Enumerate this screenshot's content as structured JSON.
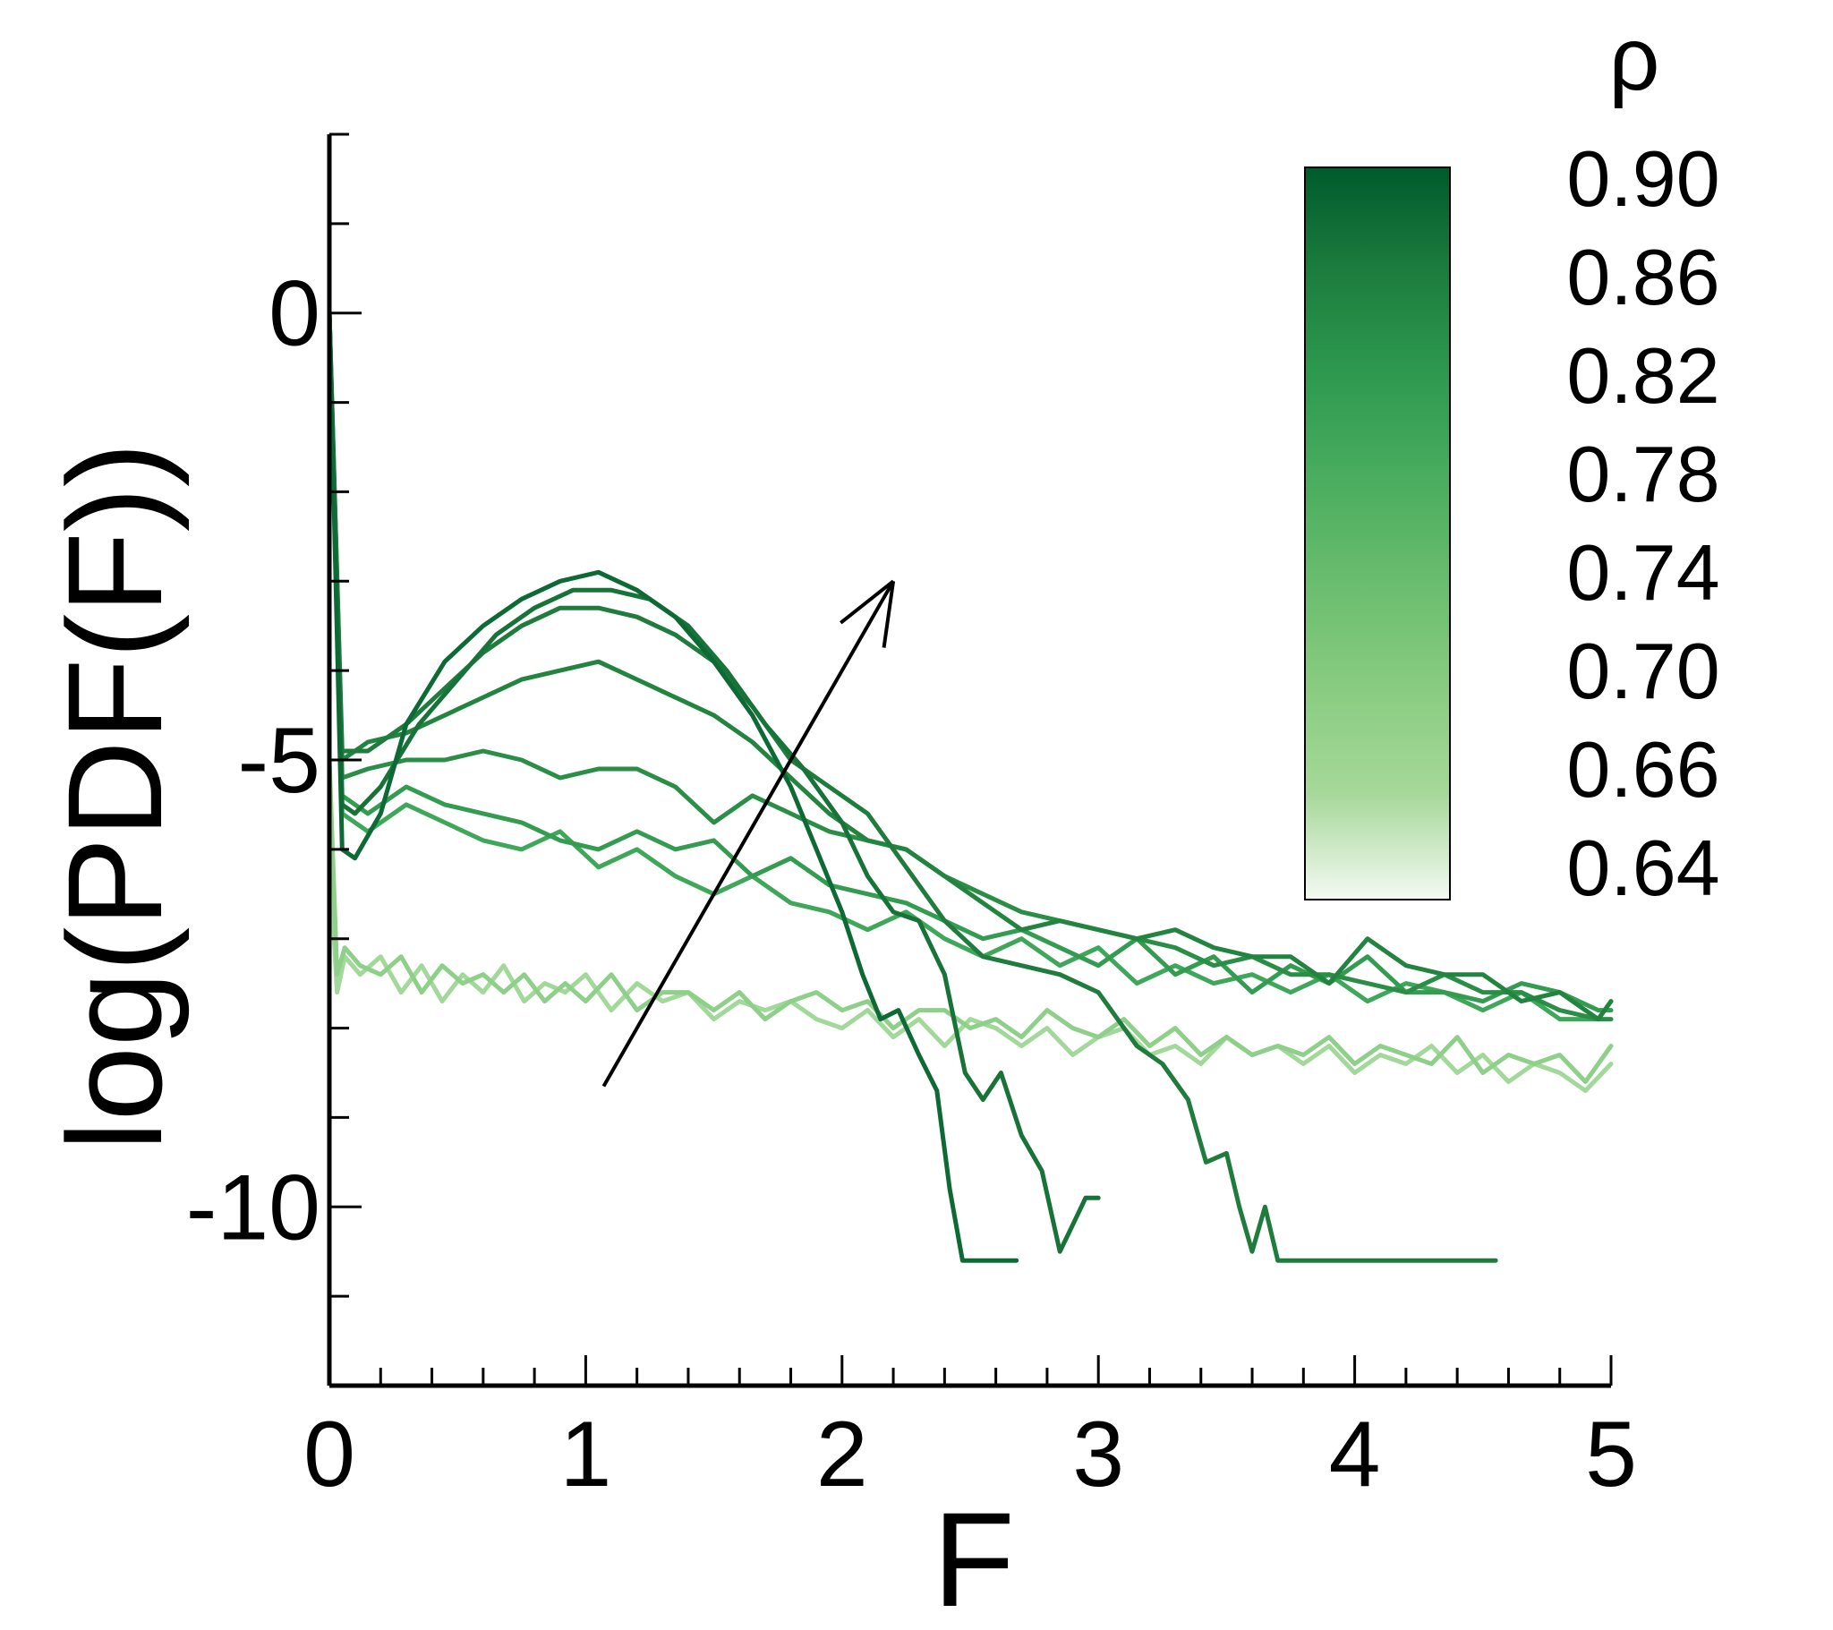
{
  "chart_data": {
    "type": "line",
    "title": "",
    "xlabel": "F",
    "ylabel": "log(PDF(F))",
    "xlim": [
      0,
      5
    ],
    "ylim": [
      -12,
      2
    ],
    "xticks": [
      0,
      1,
      2,
      3,
      4,
      5
    ],
    "xtick_labels": [
      "0",
      "1",
      "2",
      "3",
      "4",
      "5"
    ],
    "yticks": [
      0,
      -5,
      -10
    ],
    "ytick_labels": [
      "0",
      "-5",
      "-10"
    ],
    "grid": false,
    "colorbar": {
      "title": "ρ",
      "labels": [
        "0.90",
        "0.86",
        "0.82",
        "0.78",
        "0.74",
        "0.70",
        "0.66",
        "0.64"
      ],
      "colors": [
        "#005a2c",
        "#1d7d3e",
        "#2e9a50",
        "#4bad5f",
        "#6bbd6f",
        "#89cc81",
        "#a7d89a",
        "#f4faf2"
      ]
    },
    "annotation": "arrow indicating increasing ρ",
    "series": [
      {
        "color": "#0d6a35",
        "x": [
          0.0,
          0.05,
          0.1,
          0.2,
          0.3,
          0.45,
          0.6,
          0.75,
          0.9,
          1.05,
          1.2,
          1.35,
          1.5,
          1.65,
          1.8,
          1.9,
          2.0,
          2.08,
          2.15,
          2.22,
          2.3,
          2.37,
          2.42,
          2.47,
          2.55,
          2.62,
          2.68
        ],
        "y": [
          0.0,
          -6.0,
          -6.1,
          -5.6,
          -4.6,
          -3.9,
          -3.5,
          -3.2,
          -3.0,
          -2.9,
          -3.1,
          -3.4,
          -3.9,
          -4.5,
          -5.3,
          -6.0,
          -6.7,
          -7.4,
          -7.9,
          -7.8,
          -8.3,
          -8.7,
          -9.8,
          -10.6,
          -10.6,
          -10.6,
          -10.6
        ]
      },
      {
        "color": "#187338",
        "x": [
          0.0,
          0.05,
          0.1,
          0.2,
          0.35,
          0.5,
          0.65,
          0.8,
          0.95,
          1.1,
          1.25,
          1.4,
          1.55,
          1.7,
          1.85,
          2.0,
          2.1,
          2.2,
          2.3,
          2.4,
          2.48,
          2.55,
          2.62,
          2.7,
          2.78,
          2.85,
          2.9,
          2.95,
          3.0
        ],
        "y": [
          0.0,
          -5.5,
          -5.6,
          -5.3,
          -4.6,
          -4.1,
          -3.6,
          -3.3,
          -3.1,
          -3.1,
          -3.2,
          -3.5,
          -4.0,
          -4.6,
          -5.1,
          -5.7,
          -6.3,
          -6.7,
          -6.8,
          -7.4,
          -8.5,
          -8.8,
          -8.5,
          -9.2,
          -9.6,
          -10.5,
          -10.2,
          -9.9,
          -9.9
        ]
      },
      {
        "color": "#1f7c3d",
        "x": [
          0.0,
          0.05,
          0.15,
          0.3,
          0.45,
          0.6,
          0.75,
          0.9,
          1.05,
          1.2,
          1.35,
          1.5,
          1.65,
          1.8,
          1.95,
          2.1,
          2.25,
          2.4,
          2.55,
          2.7,
          2.85,
          3.0,
          3.15,
          3.25,
          3.35,
          3.42,
          3.5,
          3.55,
          3.6,
          3.65,
          3.7,
          3.8,
          4.0,
          4.2,
          4.4,
          4.55
        ],
        "y": [
          0.0,
          -4.9,
          -4.9,
          -4.6,
          -4.2,
          -3.8,
          -3.5,
          -3.3,
          -3.3,
          -3.4,
          -3.6,
          -3.9,
          -4.4,
          -5.0,
          -5.3,
          -5.6,
          -6.2,
          -6.8,
          -7.2,
          -7.3,
          -7.4,
          -7.6,
          -8.2,
          -8.4,
          -8.8,
          -9.5,
          -9.4,
          -10.0,
          -10.5,
          -10.0,
          -10.6,
          -10.6,
          -10.6,
          -10.6,
          -10.6,
          -10.6
        ]
      },
      {
        "color": "#238440",
        "x": [
          0.0,
          0.05,
          0.15,
          0.3,
          0.45,
          0.6,
          0.75,
          0.9,
          1.05,
          1.2,
          1.35,
          1.5,
          1.65,
          1.8,
          1.95,
          2.1,
          2.25,
          2.4,
          2.55,
          2.7,
          2.85,
          3.0,
          3.15,
          3.3,
          3.45,
          3.6,
          3.75,
          3.9,
          4.05,
          4.2,
          4.35,
          4.5,
          4.65,
          4.8,
          4.95,
          5.0
        ],
        "y": [
          0.0,
          -5.0,
          -4.8,
          -4.7,
          -4.5,
          -4.3,
          -4.1,
          -4.0,
          -3.9,
          -4.1,
          -4.3,
          -4.5,
          -4.8,
          -5.2,
          -5.6,
          -5.9,
          -6.0,
          -6.3,
          -6.6,
          -6.9,
          -6.8,
          -6.9,
          -7.0,
          -6.9,
          -7.1,
          -7.2,
          -7.2,
          -7.5,
          -7.0,
          -7.3,
          -7.4,
          -7.4,
          -7.7,
          -7.6,
          -7.9,
          -7.7
        ]
      },
      {
        "color": "#2a8e47",
        "x": [
          0.0,
          0.05,
          0.15,
          0.3,
          0.45,
          0.6,
          0.75,
          0.9,
          1.05,
          1.2,
          1.35,
          1.5,
          1.65,
          1.8,
          1.95,
          2.1,
          2.25,
          2.4,
          2.55,
          2.7,
          2.85,
          3.0,
          3.15,
          3.3,
          3.45,
          3.6,
          3.75,
          3.9,
          4.05,
          4.2,
          4.35,
          4.5,
          4.65,
          4.8,
          4.95,
          5.0
        ],
        "y": [
          0.0,
          -5.2,
          -5.1,
          -5.0,
          -5.0,
          -4.9,
          -5.0,
          -5.2,
          -5.1,
          -5.1,
          -5.3,
          -5.7,
          -5.4,
          -5.6,
          -5.8,
          -5.9,
          -6.0,
          -6.3,
          -6.5,
          -6.7,
          -6.8,
          -6.9,
          -7.0,
          -7.1,
          -7.3,
          -7.2,
          -7.4,
          -7.4,
          -7.5,
          -7.6,
          -7.4,
          -7.6,
          -7.6,
          -7.8,
          -7.9,
          -7.9
        ]
      },
      {
        "color": "#349c50",
        "x": [
          0.0,
          0.05,
          0.15,
          0.3,
          0.45,
          0.6,
          0.75,
          0.9,
          1.05,
          1.2,
          1.35,
          1.5,
          1.65,
          1.8,
          1.95,
          2.1,
          2.25,
          2.4,
          2.55,
          2.7,
          2.85,
          3.0,
          3.15,
          3.3,
          3.45,
          3.6,
          3.75,
          3.9,
          4.05,
          4.2,
          4.35,
          4.5,
          4.65,
          4.8,
          4.95,
          5.0
        ],
        "y": [
          0.0,
          -5.4,
          -5.6,
          -5.3,
          -5.5,
          -5.6,
          -5.7,
          -5.9,
          -6.0,
          -5.8,
          -6.0,
          -5.9,
          -6.3,
          -6.1,
          -6.4,
          -6.5,
          -6.6,
          -6.8,
          -7.0,
          -6.9,
          -7.1,
          -7.3,
          -7.0,
          -7.4,
          -7.2,
          -7.6,
          -7.3,
          -7.5,
          -7.2,
          -7.6,
          -7.6,
          -7.7,
          -7.5,
          -7.6,
          -7.8,
          -7.8
        ]
      },
      {
        "color": "#3fa759",
        "x": [
          0.0,
          0.05,
          0.15,
          0.3,
          0.45,
          0.6,
          0.75,
          0.9,
          1.05,
          1.2,
          1.35,
          1.5,
          1.65,
          1.8,
          1.95,
          2.1,
          2.25,
          2.4,
          2.55,
          2.7,
          2.85,
          3.0,
          3.15,
          3.3,
          3.45,
          3.6,
          3.75,
          3.9,
          4.05,
          4.2,
          4.35,
          4.5,
          4.65,
          4.8,
          4.95,
          5.0
        ],
        "y": [
          0.0,
          -5.6,
          -5.8,
          -5.5,
          -5.7,
          -5.9,
          -6.0,
          -5.8,
          -6.2,
          -6.0,
          -6.3,
          -6.5,
          -6.3,
          -6.6,
          -6.7,
          -6.9,
          -6.7,
          -7.0,
          -7.2,
          -7.0,
          -7.3,
          -7.1,
          -7.5,
          -7.3,
          -7.5,
          -7.4,
          -7.6,
          -7.4,
          -7.7,
          -7.5,
          -7.6,
          -7.8,
          -7.6,
          -7.9,
          -7.9,
          -7.7
        ]
      },
      {
        "color": "#8ed08a",
        "x": [
          0.0,
          0.03,
          0.06,
          0.12,
          0.2,
          0.28,
          0.36,
          0.44,
          0.52,
          0.6,
          0.68,
          0.76,
          0.84,
          0.92,
          1.0,
          1.1,
          1.2,
          1.3,
          1.4,
          1.5,
          1.6,
          1.7,
          1.8,
          1.9,
          2.0,
          2.1,
          2.2,
          2.3,
          2.4,
          2.5,
          2.6,
          2.7,
          2.8,
          2.9,
          3.0,
          3.1,
          3.2,
          3.3,
          3.4,
          3.5,
          3.6,
          3.7,
          3.8,
          3.9,
          4.0,
          4.1,
          4.2,
          4.3,
          4.4,
          4.5,
          4.6,
          4.7,
          4.8,
          4.9,
          5.0
        ],
        "y": [
          -5.0,
          -7.4,
          -7.1,
          -7.3,
          -7.4,
          -7.2,
          -7.6,
          -7.3,
          -7.5,
          -7.4,
          -7.6,
          -7.4,
          -7.7,
          -7.5,
          -7.7,
          -7.4,
          -7.8,
          -7.6,
          -7.6,
          -7.8,
          -7.6,
          -7.9,
          -7.7,
          -7.6,
          -7.8,
          -7.7,
          -8.0,
          -7.8,
          -7.8,
          -8.0,
          -7.9,
          -8.1,
          -7.8,
          -8.0,
          -8.1,
          -7.9,
          -8.2,
          -8.0,
          -8.3,
          -8.1,
          -8.3,
          -8.2,
          -8.3,
          -8.1,
          -8.4,
          -8.2,
          -8.3,
          -8.4,
          -8.1,
          -8.5,
          -8.3,
          -8.4,
          -8.3,
          -8.6,
          -8.2
        ]
      },
      {
        "color": "#a2d89a",
        "x": [
          0.0,
          0.03,
          0.06,
          0.12,
          0.2,
          0.28,
          0.36,
          0.44,
          0.52,
          0.6,
          0.68,
          0.76,
          0.84,
          0.92,
          1.0,
          1.1,
          1.2,
          1.3,
          1.4,
          1.5,
          1.6,
          1.7,
          1.8,
          1.9,
          2.0,
          2.1,
          2.2,
          2.3,
          2.4,
          2.5,
          2.6,
          2.7,
          2.8,
          2.9,
          3.0,
          3.1,
          3.2,
          3.3,
          3.4,
          3.5,
          3.6,
          3.7,
          3.8,
          3.9,
          4.0,
          4.1,
          4.2,
          4.3,
          4.4,
          4.5,
          4.6,
          4.7,
          4.8,
          4.9,
          5.0
        ],
        "y": [
          -6.0,
          -7.6,
          -7.2,
          -7.4,
          -7.2,
          -7.6,
          -7.3,
          -7.7,
          -7.4,
          -7.6,
          -7.3,
          -7.7,
          -7.5,
          -7.6,
          -7.4,
          -7.8,
          -7.5,
          -7.7,
          -7.6,
          -7.9,
          -7.7,
          -7.8,
          -7.7,
          -7.9,
          -8.0,
          -7.8,
          -8.1,
          -7.9,
          -8.2,
          -7.9,
          -8.0,
          -8.2,
          -8.0,
          -8.3,
          -8.1,
          -8.0,
          -8.3,
          -8.2,
          -8.4,
          -8.1,
          -8.3,
          -8.2,
          -8.4,
          -8.2,
          -8.5,
          -8.3,
          -8.4,
          -8.2,
          -8.5,
          -8.3,
          -8.6,
          -8.4,
          -8.5,
          -8.7,
          -8.4
        ]
      }
    ]
  }
}
